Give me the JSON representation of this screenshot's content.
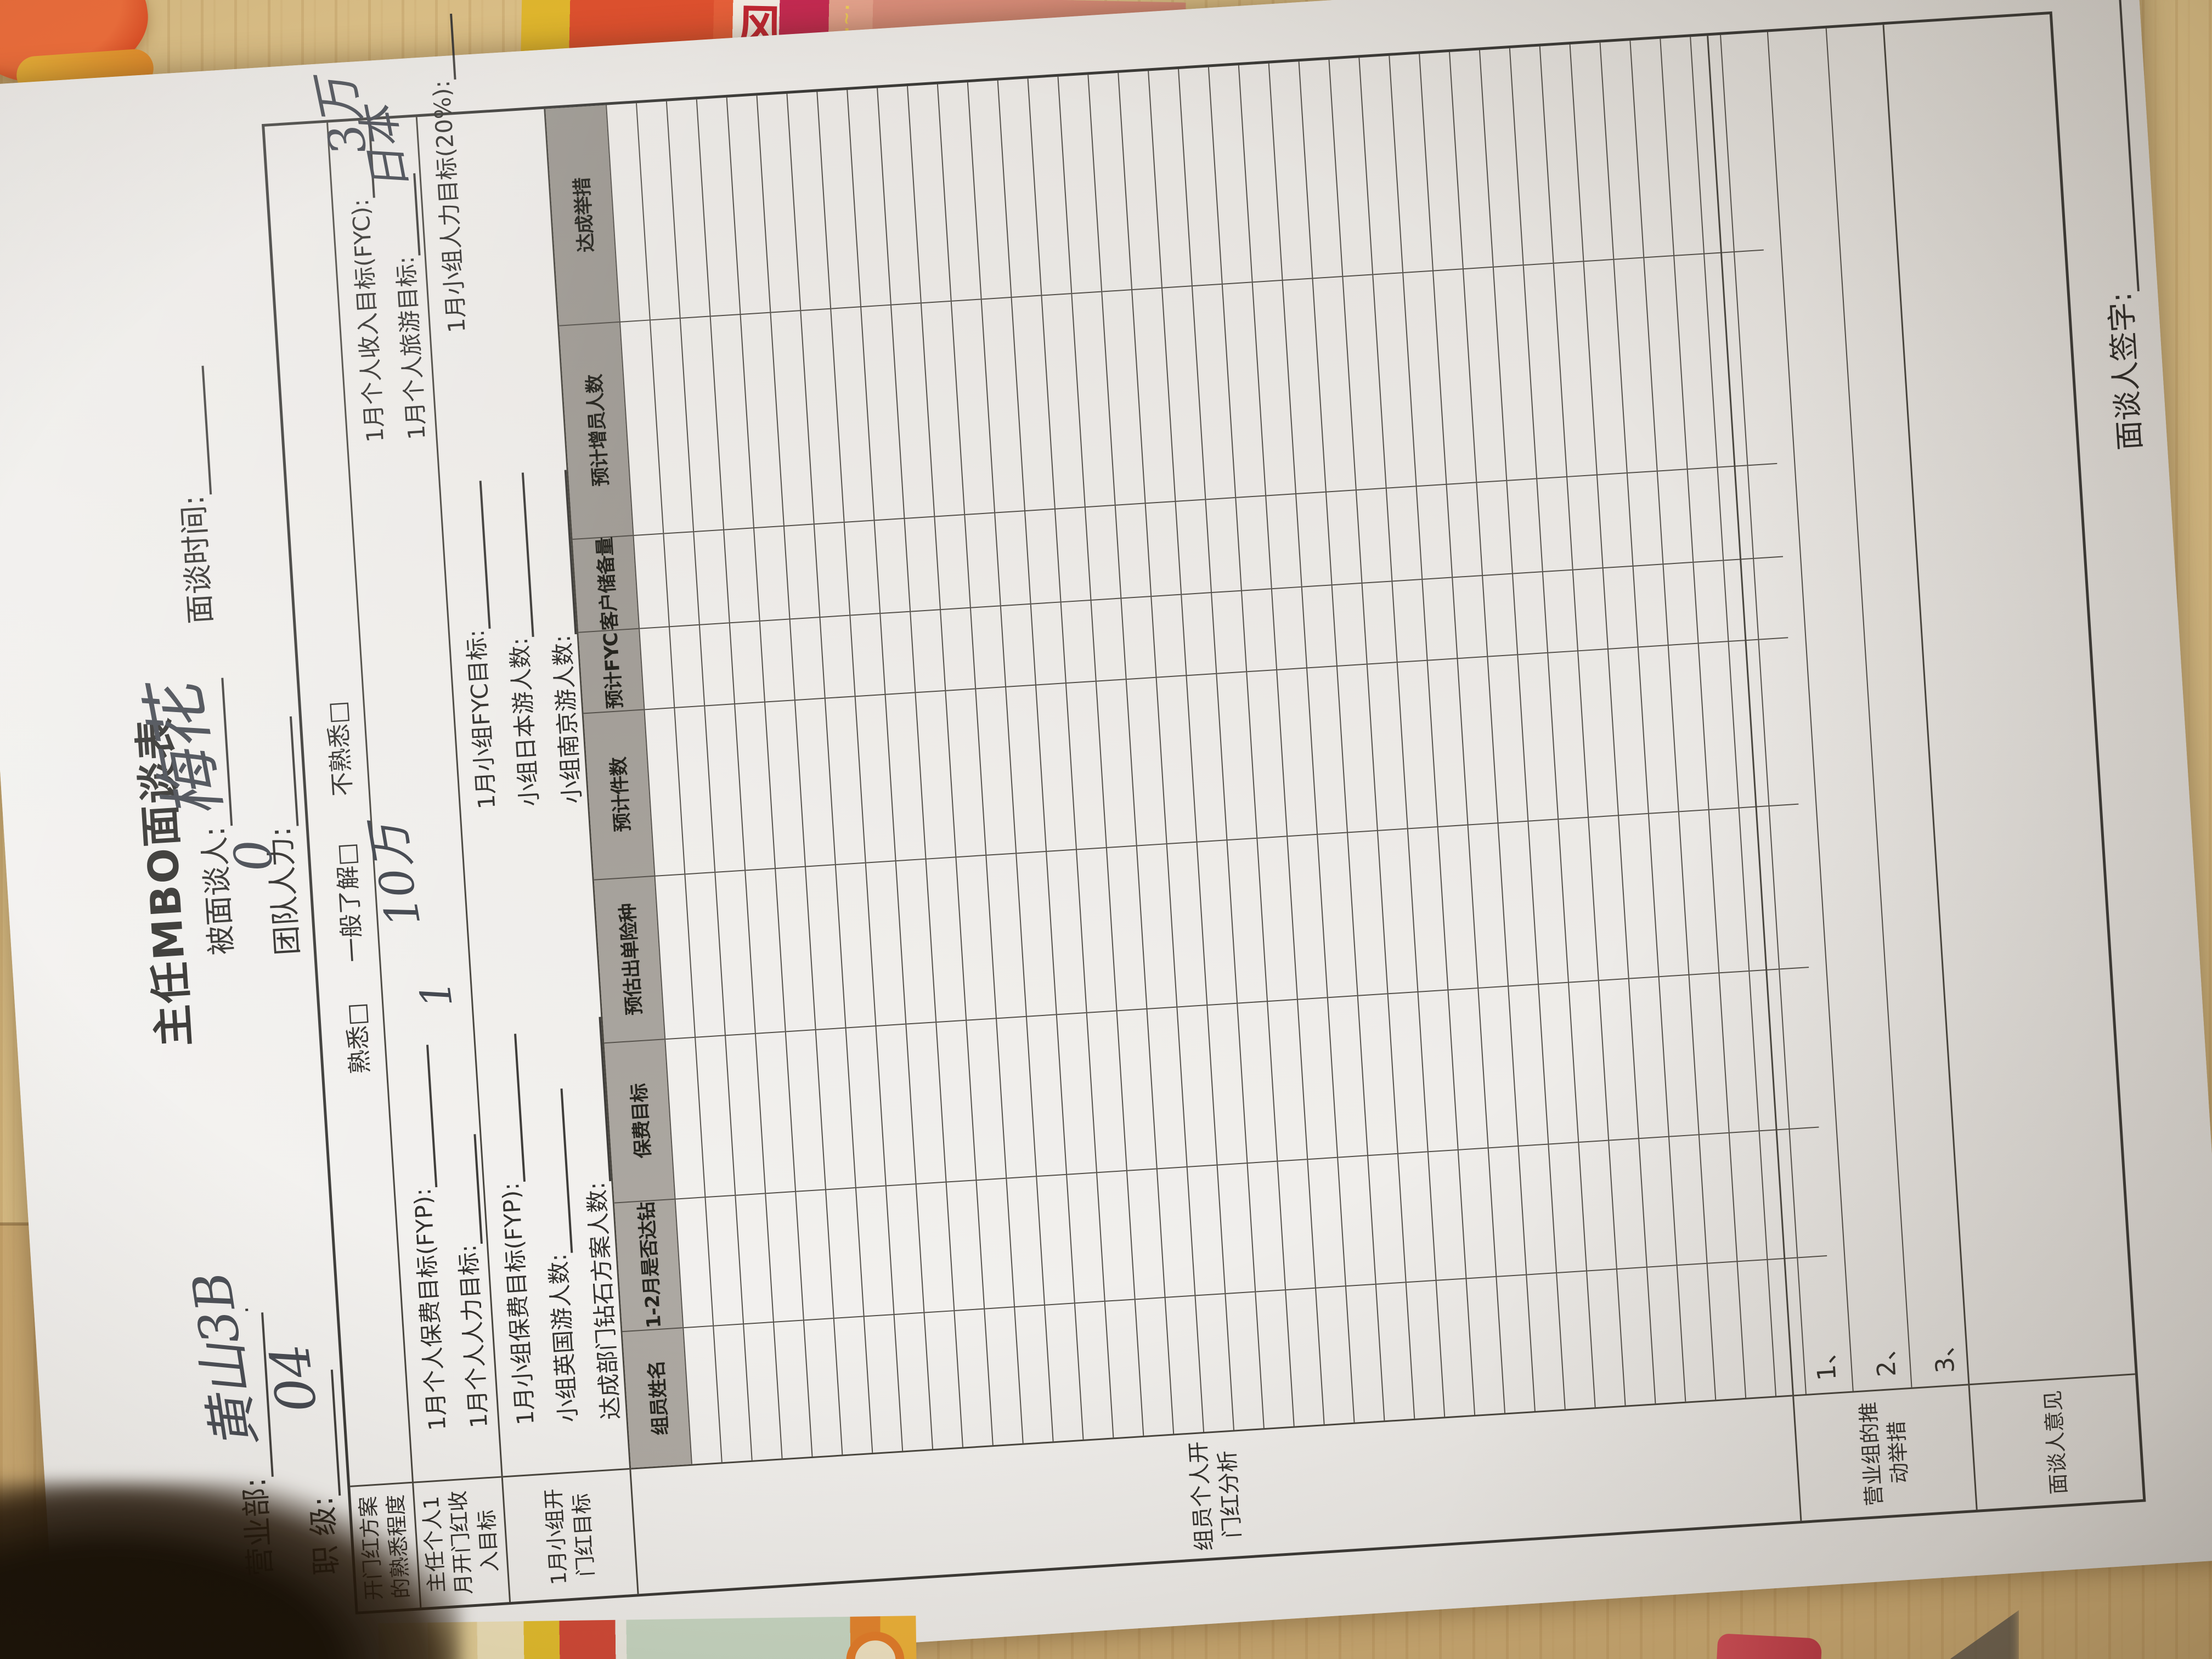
{
  "scene": {
    "desk_wood_color": "#d9b97e",
    "paper_color": "#efedea",
    "ink_color": "#34322f",
    "grid_line_color": "#56524c",
    "header_shade_color": "#a49f98",
    "handwriting_color": "#41454d",
    "decor_items": [
      "orange-package-top-left",
      "red-yellow-packaging-top",
      "magazine-bottom-edge",
      "dark-shadow-bottom-left"
    ],
    "packaging_glyph": "风"
  },
  "form": {
    "title": "主任MBO面谈表",
    "header": {
      "dept_label": "营业部:",
      "dept_value": "黄山3B",
      "dot": "·",
      "interviewee_label": "被面谈人:",
      "interviewee_value": "梅花",
      "time_label": "面谈时间:",
      "time_value": "",
      "rank_label": "职  级:",
      "rank_value": "04",
      "team_label": "团队人力:",
      "team_value": "0"
    },
    "row1": {
      "label": "开门红方案的熟悉程度",
      "options": [
        "熟悉□",
        "一般了解□",
        "不熟悉□"
      ]
    },
    "row2": {
      "label": "主任个人1月开门红收入目标",
      "l1a": "1月个人保费目标(FYP):",
      "l1a_value": "10万",
      "l1b": "1月个人收入目标(FYC):",
      "l1b_value": "3万",
      "l2a": "1月个人人力目标:",
      "l2a_value": "1",
      "l2b": "1月个人旅游目标:",
      "l2b_value": "日本"
    },
    "row3": {
      "label": "1月小组开门红目标",
      "items": [
        "1月小组保费目标(FYP):",
        "1月小组FYC目标:",
        "1月小组人力目标(20%):",
        "小组英国游人数:",
        "小组日本游人数:",
        "达成部门钻石方案人数:",
        "小组南京游人数:"
      ]
    },
    "grid": {
      "side_label": "组员个人开门红分析",
      "columns": [
        "组员姓名",
        "1-2月是否达钻",
        "保费目标",
        "预估出单险种",
        "预计件数",
        "预计FYC",
        "客户储备量",
        "预计增员人数",
        "达成举措"
      ],
      "data_row_count": 38
    },
    "push_row": {
      "label": "营业组的推动举措",
      "items": [
        "1、",
        "2、",
        "3、"
      ]
    },
    "opinion_row": {
      "label": "面谈人意见"
    },
    "signature_label": "面谈人签字:"
  }
}
